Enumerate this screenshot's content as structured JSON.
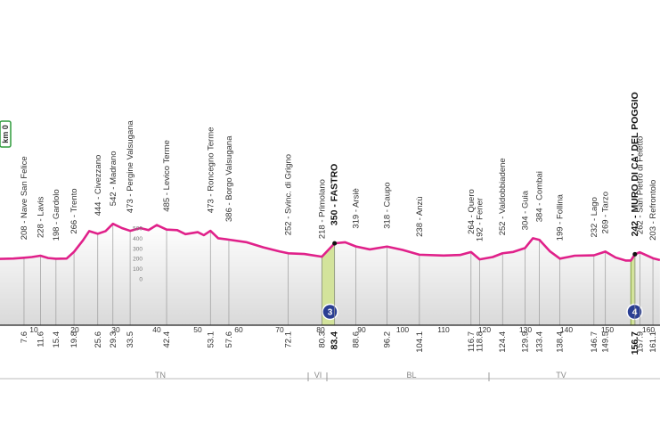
{
  "chart_data": {
    "type": "profile",
    "start_label": "km 0",
    "line_color": "#e0218a",
    "altitude_scale": [
      0,
      100,
      200,
      300,
      400,
      500
    ],
    "xticks": [
      10,
      20,
      30,
      40,
      50,
      60,
      70,
      80,
      90,
      100,
      110,
      120,
      130,
      140,
      150,
      160
    ],
    "profile": {
      "x": [
        0,
        5,
        7.6,
        9.5,
        11.6,
        13.5,
        15.4,
        18,
        19.8,
        22,
        23.5,
        25.6,
        27.5,
        29.3,
        31.5,
        33.5,
        36,
        38,
        40,
        42.4,
        45,
        47,
        50,
        51.5,
        53.1,
        55,
        57.6,
        62,
        66,
        70,
        72.1,
        76,
        80.3,
        83.4,
        86,
        88.6,
        92,
        96.2,
        100,
        104.1,
        110,
        114,
        116.7,
        118.8,
        122,
        124.4,
        127,
        129.9,
        131.8,
        133.4,
        136,
        138.4,
        142,
        146.7,
        149.5,
        152,
        154.5,
        155.7,
        156.7,
        157.9,
        161.1,
        162.8
      ],
      "values": [
        195,
        200,
        208,
        215,
        228,
        205,
        198,
        200,
        266,
        380,
        470,
        444,
        470,
        542,
        500,
        473,
        500,
        480,
        530,
        485,
        480,
        440,
        460,
        430,
        473,
        400,
        386,
        360,
        310,
        270,
        252,
        245,
        218,
        350,
        360,
        319,
        290,
        318,
        285,
        238,
        230,
        235,
        264,
        192,
        215,
        252,
        265,
        304,
        400,
        384,
        270,
        199,
        228,
        232,
        269,
        210,
        180,
        180,
        242,
        262,
        203,
        185
      ]
    },
    "waypoints": [
      {
        "label": "208 - Nave San Felice",
        "elev": 208,
        "km": 7.6
      },
      {
        "label": "228 - Lavis",
        "elev": 228,
        "km": 11.6
      },
      {
        "label": "198 - Gardolo",
        "elev": 198,
        "km": 15.4
      },
      {
        "label": "266 - Trento",
        "elev": 266,
        "km": 19.8
      },
      {
        "label": "444 - Civezzano",
        "elev": 444,
        "km": 25.6
      },
      {
        "label": "542 - Madrano",
        "elev": 542,
        "km": 29.3
      },
      {
        "label": "473 - Pergine Valsugana",
        "elev": 473,
        "km": 33.5
      },
      {
        "label": "485 - Levico Terme",
        "elev": 485,
        "km": 42.4
      },
      {
        "label": "473 - Roncegno Terme",
        "elev": 473,
        "km": 53.1
      },
      {
        "label": "386 - Borgo Valsugana",
        "elev": 386,
        "km": 57.6
      },
      {
        "label": "252 - Svinc. di Grigno",
        "elev": 252,
        "km": 72.1
      },
      {
        "label": "218 - Primolano",
        "elev": 218,
        "km": 80.3
      },
      {
        "label": "350 - FASTRO",
        "elev": 350,
        "km": 83.4,
        "bold": true
      },
      {
        "label": "319 - Arsiè",
        "elev": 319,
        "km": 88.6
      },
      {
        "label": "318 - Caupo",
        "elev": 318,
        "km": 96.2
      },
      {
        "label": "238 - Anzù",
        "elev": 238,
        "km": 104.1
      },
      {
        "label": "264 - Quero",
        "elev": 264,
        "km": 116.7
      },
      {
        "label": "192 - Fener",
        "elev": 192,
        "km": 118.8
      },
      {
        "label": "252 - Valdobbiadene",
        "elev": 252,
        "km": 124.4
      },
      {
        "label": "304 - Guia",
        "elev": 304,
        "km": 129.9
      },
      {
        "label": "384 - Combai",
        "elev": 384,
        "km": 133.4
      },
      {
        "label": "199 - Follina",
        "elev": 199,
        "km": 138.4
      },
      {
        "label": "232 - Lago",
        "elev": 232,
        "km": 146.7
      },
      {
        "label": "269 - Tarzo",
        "elev": 269,
        "km": 149.5
      },
      {
        "label": "242 - MURO DI CA' DEL POGGIO",
        "elev": 242,
        "km": 156.7,
        "bold": true
      },
      {
        "label": "262 - San Pietro di Feletto",
        "elev": 262,
        "km": 157.9
      },
      {
        "label": "203 - Refrontolo",
        "elev": 203,
        "km": 161.1
      }
    ],
    "climbs": [
      {
        "km": [
          80.3,
          83.4
        ],
        "label": "3"
      },
      {
        "km": [
          155.7,
          156.7
        ],
        "label": "4"
      }
    ],
    "provinces": [
      "TN",
      "VI",
      "BL",
      "TV"
    ]
  }
}
